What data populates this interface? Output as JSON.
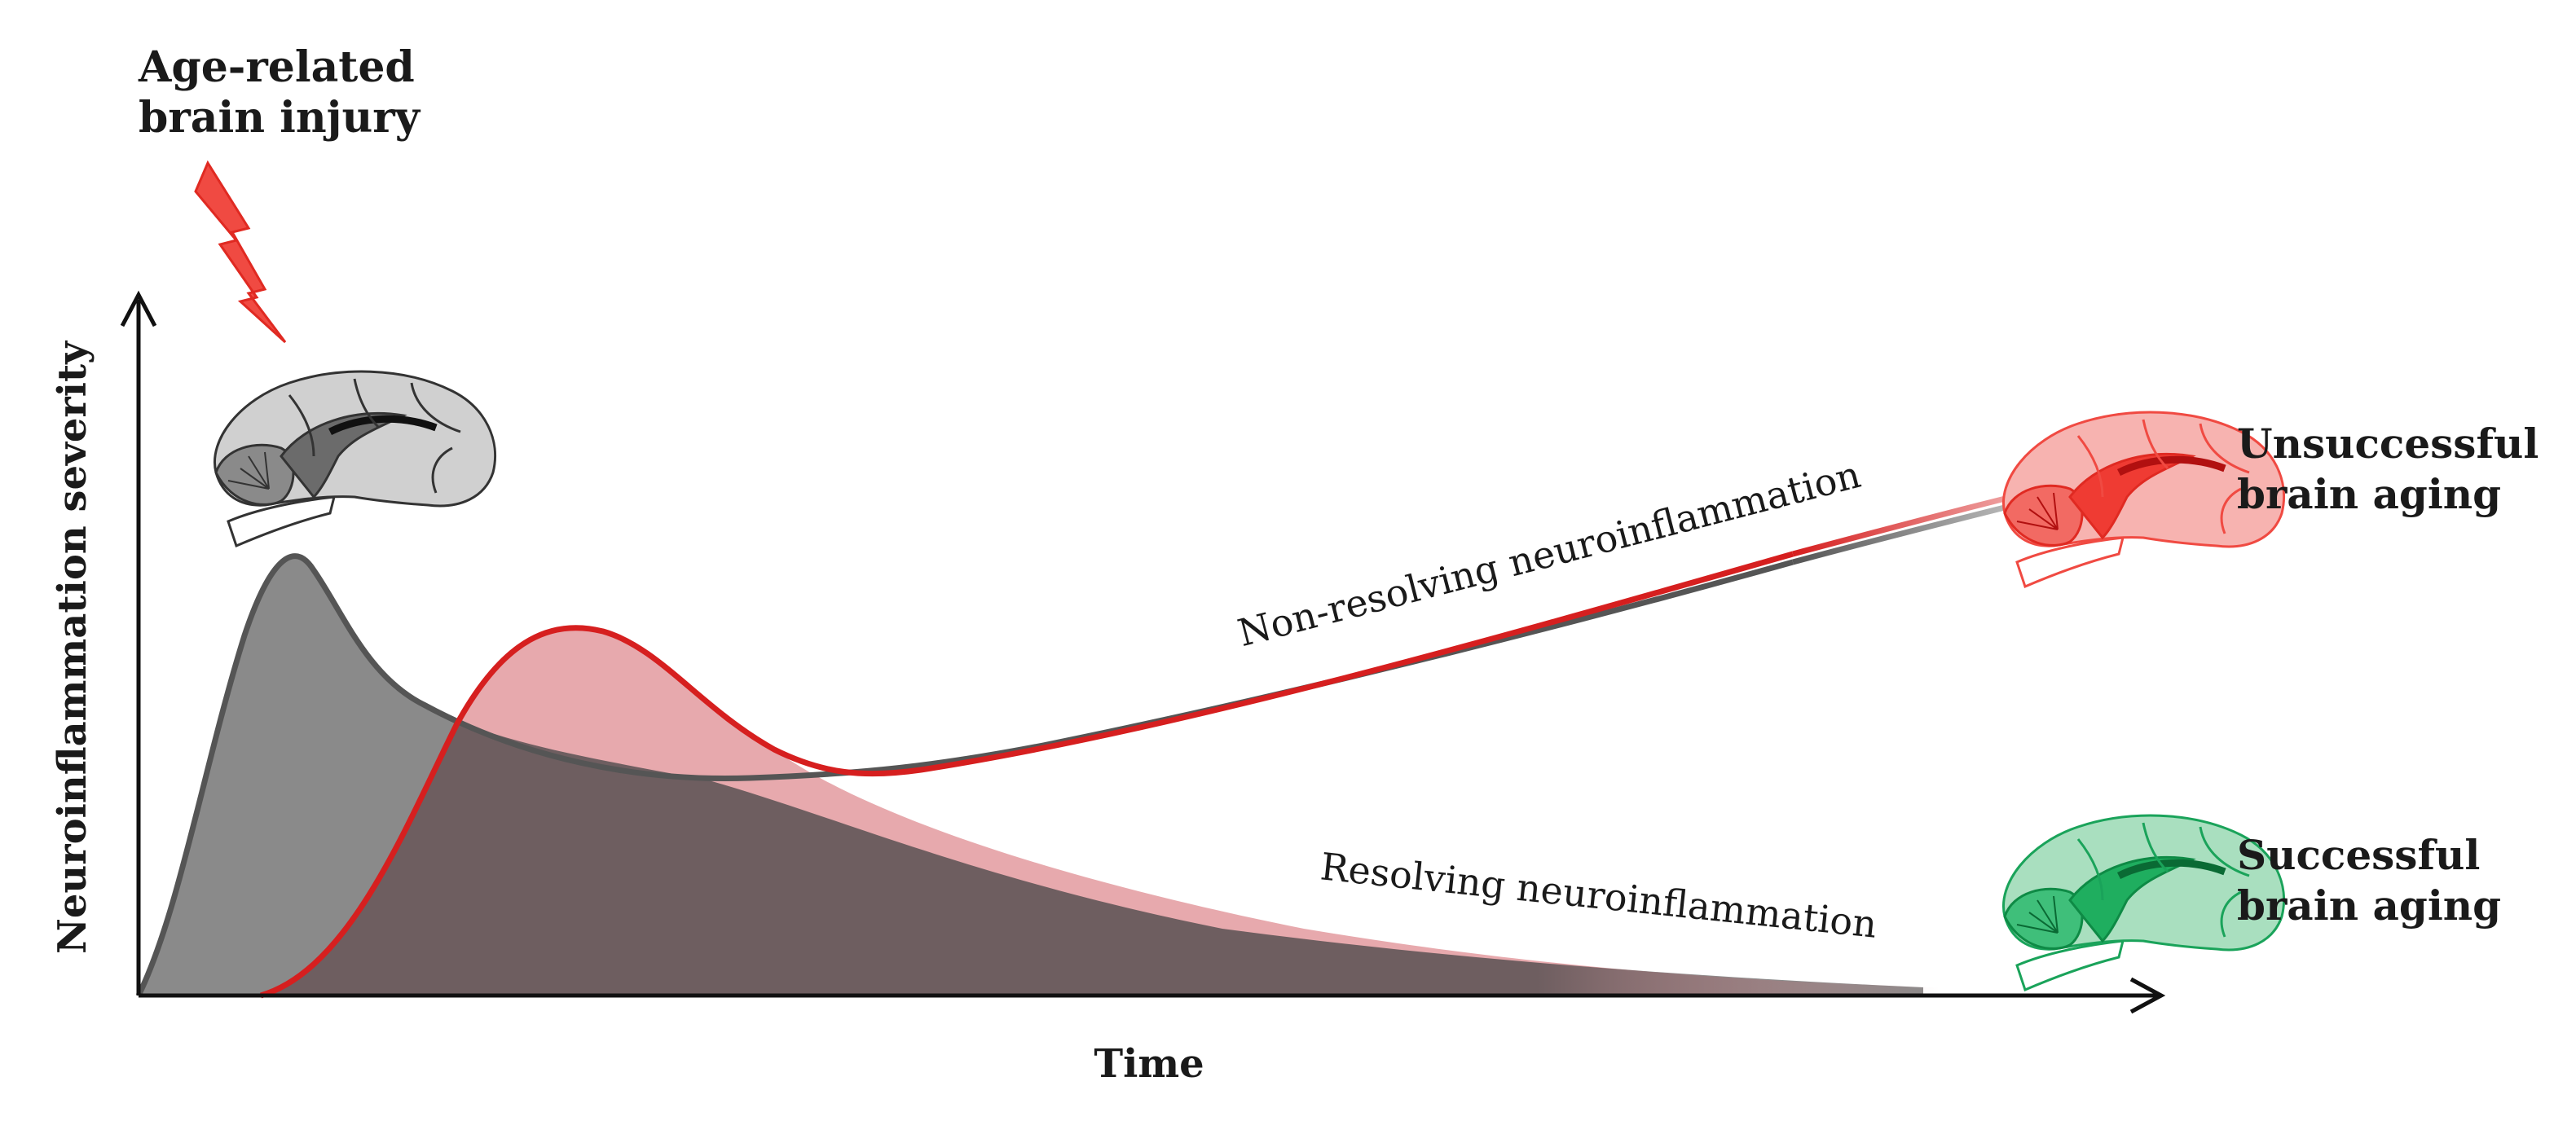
{
  "injury_label": {
    "line1": "Age-related",
    "line2": "brain injury"
  },
  "axes": {
    "y_label": "Neuroinflammation severity",
    "x_label": "Time"
  },
  "curves": {
    "non_resolving": "Non-resolving neuroinflammation",
    "resolving": "Resolving neuroinflammation"
  },
  "outcomes": {
    "unsuccessful": {
      "line1": "Unsuccessful",
      "line2": "brain aging"
    },
    "successful": {
      "line1": "Successful",
      "line2": "brain aging"
    }
  },
  "colors": {
    "injury": "#f04a42",
    "gray_curve": "#555555",
    "gray_fill": "#8a8a8a",
    "red_curve": "#d61f1f",
    "red_fill": "#e7a9ad",
    "overlap_fill": "#94797b",
    "unsuccessful_brain": "#f04a42",
    "successful_brain": "#1aa35a",
    "neutral_brain": "#9b9b9b"
  },
  "icons": [
    "lightning-icon",
    "brain-icon"
  ]
}
